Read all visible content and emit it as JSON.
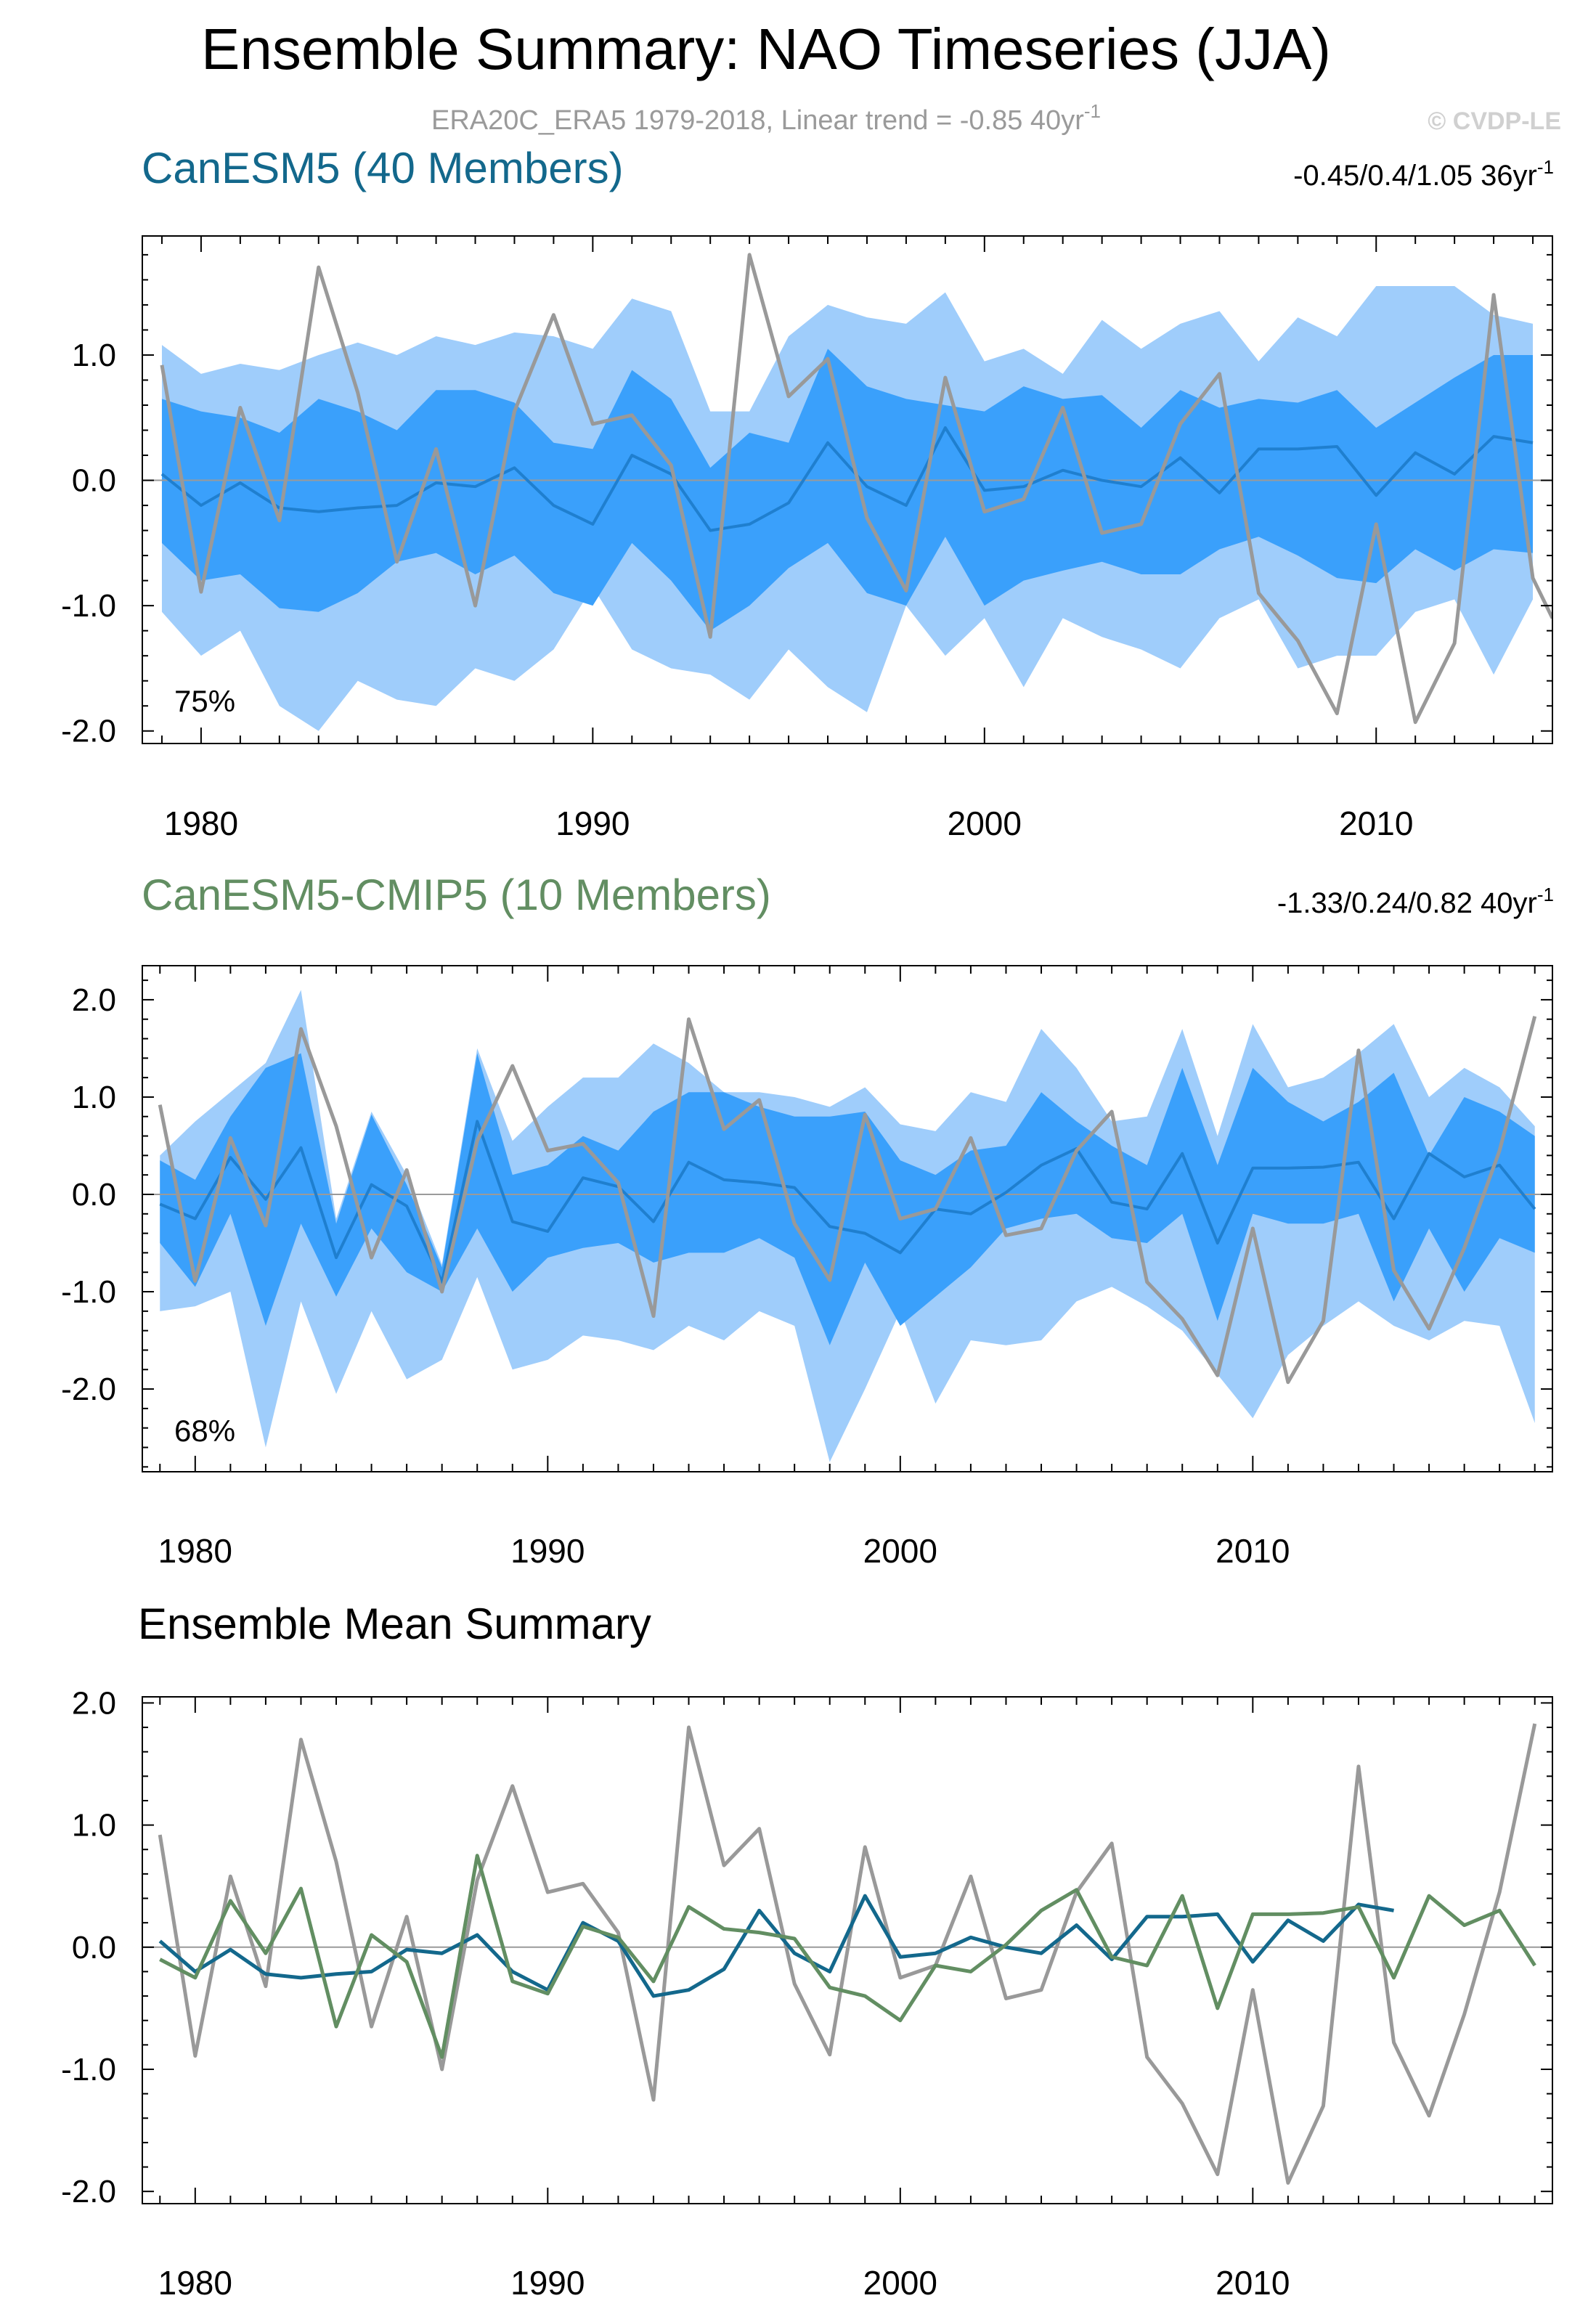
{
  "title": "Ensemble Summary: NAO Timeseries (JJA)",
  "subtitle": "ERA20C_ERA5 1979-2018, Linear trend = -0.85 40yr",
  "subtitle_sup": "-1",
  "watermark": "© CVDP-LE",
  "colors": {
    "outer_band": "#9fcdfb",
    "inner_band": "#3aa0fb",
    "mean_line_canesm5": "#1f7fcf",
    "mean_line_cmip5": "#1f7fcf",
    "obs": "#999999",
    "canesm5_title": "#13688c",
    "cmip5_title": "#628e62",
    "summary_canesm5": "#13688c",
    "summary_cmip5": "#628e62",
    "zero_line": "#9a9a9a"
  },
  "chart_data": [
    {
      "id": "canesm5",
      "type": "area",
      "title": "CanESM5 (40 Members)",
      "trend_label": "-0.45/0.4/1.05 36yr",
      "trend_sup": "-1",
      "percent_label": "75%",
      "xlabel": "",
      "ylabel": "",
      "xlim": [
        1978.5,
        2014.5
      ],
      "ylim": [
        -2.1,
        1.95
      ],
      "xticks": [
        1980,
        1990,
        2000,
        2010
      ],
      "yticks": [
        1.0,
        0.0,
        -1.0,
        -2.0
      ],
      "ytick_labels": [
        "1.0",
        "0.0",
        "-1.0",
        "-2.0"
      ],
      "x": [
        1979,
        1980,
        1981,
        1982,
        1983,
        1984,
        1985,
        1986,
        1987,
        1988,
        1989,
        1990,
        1991,
        1992,
        1993,
        1994,
        1995,
        1996,
        1997,
        1998,
        1999,
        2000,
        2001,
        2002,
        2003,
        2004,
        2005,
        2006,
        2007,
        2008,
        2009,
        2010,
        2011,
        2012,
        2013,
        2014
      ],
      "outer_upper": [
        1.08,
        0.85,
        0.93,
        0.88,
        1.0,
        1.1,
        1.0,
        1.15,
        1.08,
        1.18,
        1.15,
        1.05,
        1.45,
        1.35,
        0.55,
        0.55,
        1.15,
        1.4,
        1.3,
        1.25,
        1.5,
        0.95,
        1.05,
        0.85,
        1.28,
        1.05,
        1.25,
        1.35,
        0.95,
        1.3,
        1.15,
        1.55,
        1.55,
        1.55,
        1.32,
        1.25
      ],
      "inner_upper": [
        0.65,
        0.55,
        0.5,
        0.38,
        0.65,
        0.55,
        0.4,
        0.72,
        0.72,
        0.62,
        0.3,
        0.25,
        0.88,
        0.65,
        0.1,
        0.38,
        0.3,
        1.05,
        0.75,
        0.65,
        0.6,
        0.55,
        0.75,
        0.65,
        0.68,
        0.42,
        0.72,
        0.58,
        0.65,
        0.62,
        0.72,
        0.42,
        0.62,
        0.82,
        1.0,
        1.0
      ],
      "mean": [
        0.05,
        -0.2,
        -0.02,
        -0.22,
        -0.25,
        -0.22,
        -0.2,
        -0.02,
        -0.05,
        0.1,
        -0.2,
        -0.35,
        0.2,
        0.05,
        -0.4,
        -0.35,
        -0.18,
        0.3,
        -0.05,
        -0.2,
        0.42,
        -0.08,
        -0.05,
        0.08,
        0.0,
        -0.05,
        0.18,
        -0.1,
        0.25,
        0.25,
        0.27,
        -0.12,
        0.22,
        0.05,
        0.35,
        0.3
      ],
      "inner_lower": [
        -0.5,
        -0.8,
        -0.75,
        -1.02,
        -1.05,
        -0.9,
        -0.65,
        -0.58,
        -0.75,
        -0.6,
        -0.9,
        -1.0,
        -0.5,
        -0.8,
        -1.2,
        -1.0,
        -0.7,
        -0.5,
        -0.9,
        -1.0,
        -0.45,
        -1.0,
        -0.8,
        -0.72,
        -0.65,
        -0.75,
        -0.75,
        -0.55,
        -0.45,
        -0.6,
        -0.78,
        -0.82,
        -0.55,
        -0.72,
        -0.55,
        -0.58
      ],
      "outer_lower": [
        -1.05,
        -1.4,
        -1.2,
        -1.8,
        -2.0,
        -1.6,
        -1.75,
        -1.8,
        -1.5,
        -1.6,
        -1.35,
        -0.85,
        -1.35,
        -1.5,
        -1.55,
        -1.75,
        -1.35,
        -1.65,
        -1.85,
        -1.0,
        -1.4,
        -1.1,
        -1.65,
        -1.1,
        -1.25,
        -1.35,
        -1.5,
        -1.1,
        -0.95,
        -1.5,
        -1.4,
        -1.4,
        -1.05,
        -0.95,
        -1.55,
        -0.95
      ],
      "obs": [
        0.92,
        -0.89,
        0.58,
        -0.32,
        1.7,
        0.7,
        -0.65,
        0.25,
        -1.0,
        0.55,
        1.32,
        0.45,
        0.52,
        0.12,
        -1.25,
        1.8,
        0.67,
        0.97,
        -0.3,
        -0.88,
        0.82,
        -0.25,
        -0.15,
        0.58,
        -0.42,
        -0.35,
        0.45,
        0.85,
        -0.9,
        -1.28,
        -1.86,
        -0.35,
        -1.93,
        -1.3,
        1.48,
        -0.78
      ],
      "obs_tail_end": [
        2014.5,
        -1.1
      ]
    },
    {
      "id": "cmip5",
      "type": "area",
      "title": "CanESM5-CMIP5 (10 Members)",
      "trend_label": "-1.33/0.24/0.82 40yr",
      "trend_sup": "-1",
      "percent_label": "68%",
      "xlabel": "",
      "ylabel": "",
      "xlim": [
        1978.5,
        2018.5
      ],
      "ylim": [
        -2.85,
        2.35
      ],
      "xticks": [
        1980,
        1990,
        2000,
        2010
      ],
      "yticks": [
        2.0,
        1.0,
        0.0,
        -1.0,
        -2.0
      ],
      "ytick_labels": [
        "2.0",
        "1.0",
        "0.0",
        "-1.0",
        "-2.0"
      ],
      "x": [
        1979,
        1980,
        1981,
        1982,
        1983,
        1984,
        1985,
        1986,
        1987,
        1988,
        1989,
        1990,
        1991,
        1992,
        1993,
        1994,
        1995,
        1996,
        1997,
        1998,
        1999,
        2000,
        2001,
        2002,
        2003,
        2004,
        2005,
        2006,
        2007,
        2008,
        2009,
        2010,
        2011,
        2012,
        2013,
        2014,
        2015,
        2016,
        2017,
        2018
      ],
      "outer_upper": [
        0.4,
        0.75,
        1.05,
        1.35,
        2.1,
        -0.25,
        0.85,
        0.2,
        -0.72,
        1.5,
        0.55,
        0.9,
        1.2,
        1.2,
        1.55,
        1.35,
        1.05,
        1.05,
        1.0,
        0.9,
        1.1,
        0.72,
        0.65,
        1.05,
        0.95,
        1.7,
        1.3,
        0.75,
        0.8,
        1.7,
        0.6,
        1.75,
        1.1,
        1.2,
        1.45,
        1.75,
        1.0,
        1.3,
        1.1,
        0.7
      ],
      "inner_upper": [
        0.35,
        0.15,
        0.8,
        1.3,
        1.45,
        -0.3,
        0.82,
        0.1,
        -0.75,
        1.45,
        0.2,
        0.3,
        0.6,
        0.45,
        0.85,
        1.05,
        1.05,
        0.9,
        0.8,
        0.8,
        0.85,
        0.35,
        0.2,
        0.45,
        0.5,
        1.05,
        0.75,
        0.5,
        0.3,
        1.3,
        0.3,
        1.3,
        0.95,
        0.75,
        0.95,
        1.25,
        0.4,
        1.0,
        0.85,
        0.6
      ],
      "mean": [
        -0.1,
        -0.25,
        0.38,
        -0.05,
        0.48,
        -0.65,
        0.1,
        -0.12,
        -0.9,
        0.75,
        -0.28,
        -0.38,
        0.17,
        0.08,
        -0.28,
        0.33,
        0.15,
        0.12,
        0.07,
        -0.33,
        -0.4,
        -0.6,
        -0.15,
        -0.2,
        0.02,
        0.3,
        0.47,
        -0.08,
        -0.15,
        0.42,
        -0.5,
        0.27,
        0.27,
        0.28,
        0.33,
        -0.25,
        0.42,
        0.18,
        0.3,
        -0.15
      ],
      "inner_lower": [
        -0.5,
        -0.95,
        -0.2,
        -1.35,
        -0.3,
        -1.05,
        -0.35,
        -0.8,
        -1.0,
        -0.35,
        -1.0,
        -0.65,
        -0.55,
        -0.5,
        -0.7,
        -0.6,
        -0.6,
        -0.45,
        -0.65,
        -1.55,
        -0.7,
        -1.35,
        -1.05,
        -0.75,
        -0.35,
        -0.25,
        -0.2,
        -0.45,
        -0.5,
        -0.2,
        -1.3,
        -0.2,
        -0.3,
        -0.3,
        -0.2,
        -1.1,
        -0.35,
        -1.0,
        -0.45,
        -0.6
      ],
      "outer_lower": [
        -1.2,
        -1.15,
        -1.0,
        -2.6,
        -1.1,
        -2.05,
        -1.2,
        -1.9,
        -1.7,
        -0.85,
        -1.8,
        -1.7,
        -1.45,
        -1.5,
        -1.6,
        -1.35,
        -1.5,
        -1.2,
        -1.35,
        -2.75,
        -2.0,
        -1.2,
        -2.15,
        -1.5,
        -1.55,
        -1.5,
        -1.1,
        -0.95,
        -1.15,
        -1.4,
        -1.85,
        -2.3,
        -1.65,
        -1.35,
        -1.1,
        -1.35,
        -1.5,
        -1.3,
        -1.35,
        -2.35
      ],
      "obs": [
        0.92,
        -0.89,
        0.58,
        -0.32,
        1.7,
        0.7,
        -0.65,
        0.25,
        -1.0,
        0.55,
        1.32,
        0.45,
        0.52,
        0.12,
        -1.25,
        1.8,
        0.67,
        0.97,
        -0.3,
        -0.88,
        0.82,
        -0.25,
        -0.15,
        0.58,
        -0.42,
        -0.35,
        0.45,
        0.85,
        -0.9,
        -1.28,
        -1.86,
        -0.35,
        -1.93,
        -1.3,
        1.48,
        -0.78,
        -1.38,
        -0.55,
        0.45,
        1.83
      ]
    },
    {
      "id": "summary",
      "type": "line",
      "title": "Ensemble Mean Summary",
      "xlabel": "",
      "ylabel": "",
      "xlim": [
        1978.5,
        2018.5
      ],
      "ylim": [
        -2.1,
        2.05
      ],
      "xticks": [
        1980,
        1990,
        2000,
        2010
      ],
      "yticks": [
        2.0,
        1.0,
        0.0,
        -1.0,
        -2.0
      ],
      "ytick_labels": [
        "2.0",
        "1.0",
        "0.0",
        "-1.0",
        "-2.0"
      ],
      "series": [
        {
          "name": "ERA20C_ERA5",
          "color_key": "obs",
          "x_start": 1979,
          "values": [
            0.92,
            -0.89,
            0.58,
            -0.32,
            1.7,
            0.7,
            -0.65,
            0.25,
            -1.0,
            0.55,
            1.32,
            0.45,
            0.52,
            0.12,
            -1.25,
            1.8,
            0.67,
            0.97,
            -0.3,
            -0.88,
            0.82,
            -0.25,
            -0.15,
            0.58,
            -0.42,
            -0.35,
            0.45,
            0.85,
            -0.9,
            -1.28,
            -1.86,
            -0.35,
            -1.93,
            -1.3,
            1.48,
            -0.78,
            -1.38,
            -0.55,
            0.45,
            1.83
          ]
        },
        {
          "name": "CanESM5 (40 Members)",
          "color_key": "summary_canesm5",
          "x_start": 1979,
          "values": [
            0.05,
            -0.2,
            -0.02,
            -0.22,
            -0.25,
            -0.22,
            -0.2,
            -0.02,
            -0.05,
            0.1,
            -0.2,
            -0.35,
            0.2,
            0.05,
            -0.4,
            -0.35,
            -0.18,
            0.3,
            -0.05,
            -0.2,
            0.42,
            -0.08,
            -0.05,
            0.08,
            0.0,
            -0.05,
            0.18,
            -0.1,
            0.25,
            0.25,
            0.27,
            -0.12,
            0.22,
            0.05,
            0.35,
            0.3
          ]
        },
        {
          "name": "CanESM5-CMIP5 (10 Members)",
          "color_key": "summary_cmip5",
          "x_start": 1979,
          "values": [
            -0.1,
            -0.25,
            0.38,
            -0.05,
            0.48,
            -0.65,
            0.1,
            -0.12,
            -0.9,
            0.75,
            -0.28,
            -0.38,
            0.17,
            0.08,
            -0.28,
            0.33,
            0.15,
            0.12,
            0.07,
            -0.33,
            -0.4,
            -0.6,
            -0.15,
            -0.2,
            0.02,
            0.3,
            0.47,
            -0.08,
            -0.15,
            0.42,
            -0.5,
            0.27,
            0.27,
            0.28,
            0.33,
            -0.25,
            0.42,
            0.18,
            0.3,
            -0.15
          ]
        }
      ]
    }
  ]
}
